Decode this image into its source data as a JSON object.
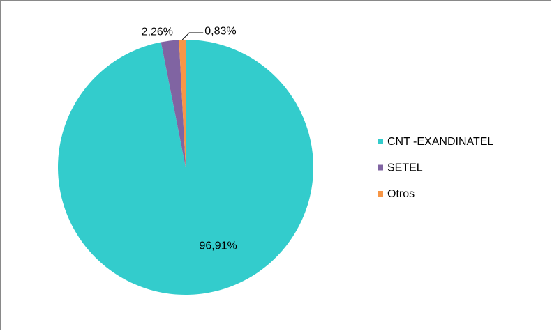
{
  "chart_data": {
    "type": "pie",
    "categories": [
      "CNT -EXANDINATEL",
      "SETEL",
      "Otros"
    ],
    "values": [
      96.91,
      2.26,
      0.83
    ],
    "value_labels": [
      "96,91%",
      "2,26%",
      "0,83%"
    ],
    "colors": [
      "#33cccc",
      "#8064a2",
      "#f79646"
    ],
    "legend": "right"
  }
}
